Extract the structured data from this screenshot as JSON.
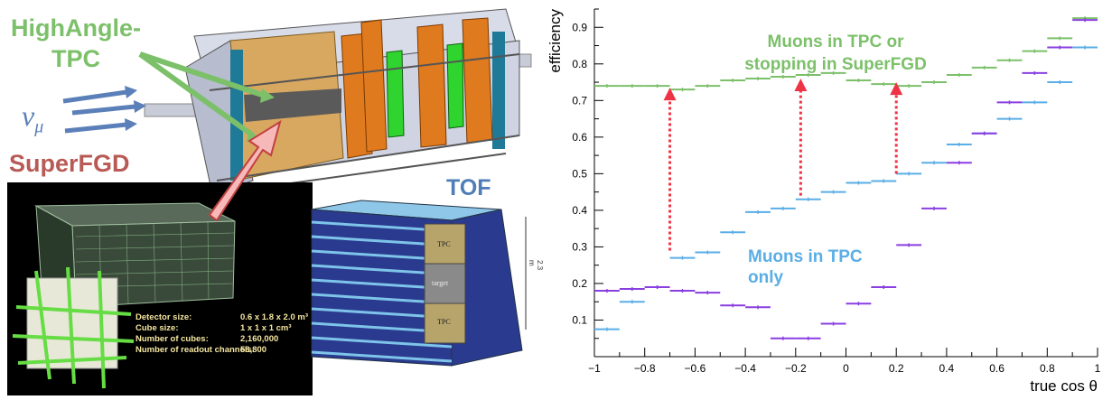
{
  "left_panel": {
    "label_tpc": "HighAngle-\nTPC",
    "label_tpc_line1": "HighAngle-",
    "label_tpc_line2": "TPC",
    "label_nu": "ν",
    "label_nu_sub": "μ",
    "label_superfgd": "SuperFGD",
    "label_tof": "TOF",
    "tof_dimension": "2.3 m",
    "tof_tpc_top": "TPC",
    "tof_target": "target",
    "tof_tpc_bottom": "TPC",
    "detector_info": [
      {
        "key": "Detector size:",
        "value": "0.6 x 1.8 x 2.0 m³"
      },
      {
        "key": "Cube size:",
        "value": "1 x 1 x 1 cm³"
      },
      {
        "key": "Number of cubes:",
        "value": "2,160,000"
      },
      {
        "key": "Number of readout channels:",
        "value": "58,800"
      }
    ],
    "colors": {
      "green": "#7cc06a",
      "blue": "#5b7fb8",
      "red": "#b85a55",
      "orange": "#e07a1f",
      "tan": "#d9a860"
    }
  },
  "chart_data": {
    "type": "scatter",
    "xlabel": "true cos θ",
    "ylabel": "efficiency",
    "xlim": [
      -1,
      1
    ],
    "ylim": [
      0,
      0.95
    ],
    "xticks": [
      "−1",
      "−0.8",
      "−0.6",
      "−0.4",
      "−0.2",
      "0",
      "0.2",
      "0.4",
      "0.6",
      "0.8",
      "1"
    ],
    "yticks": [
      "0.1",
      "0.2",
      "0.3",
      "0.4",
      "0.5",
      "0.6",
      "0.7",
      "0.8",
      "0.9"
    ],
    "bin_centers": [
      -0.95,
      -0.85,
      -0.75,
      -0.65,
      -0.55,
      -0.45,
      -0.35,
      -0.25,
      -0.15,
      -0.05,
      0.05,
      0.15,
      0.25,
      0.35,
      0.45,
      0.55,
      0.65,
      0.75,
      0.85,
      0.95
    ],
    "bin_half_width": 0.05,
    "series": [
      {
        "name": "Muons in TPC or stopping in SuperFGD",
        "label_line1": "Muons in TPC or",
        "label_line2": "stopping in SuperFGD",
        "color": "#7cc06a",
        "values": [
          0.74,
          0.74,
          0.74,
          0.73,
          0.74,
          0.755,
          0.76,
          0.765,
          0.77,
          0.775,
          0.755,
          0.745,
          0.74,
          0.75,
          0.77,
          0.79,
          0.81,
          0.835,
          0.87,
          0.925
        ]
      },
      {
        "name": "Muons in TPC only",
        "label_line1": "Muons in TPC",
        "label_line2": "only",
        "color": "#5aaee6",
        "values": [
          0.075,
          0.15,
          0.19,
          0.27,
          0.285,
          0.34,
          0.395,
          0.405,
          0.43,
          0.45,
          0.475,
          0.48,
          0.5,
          0.53,
          0.58,
          0.61,
          0.65,
          0.695,
          0.75,
          0.845
        ]
      },
      {
        "name": "",
        "color": "#8a3fe0",
        "values": [
          0.18,
          0.185,
          0.19,
          0.18,
          0.175,
          0.14,
          0.135,
          0.05,
          0.05,
          0.09,
          0.145,
          0.19,
          0.305,
          0.405,
          0.53,
          0.61,
          0.695,
          0.775,
          0.845,
          0.92
        ]
      }
    ],
    "arrows": [
      {
        "x": -0.7,
        "from": 0.29,
        "to": 0.73
      },
      {
        "x": -0.18,
        "from": 0.44,
        "to": 0.755
      },
      {
        "x": 0.2,
        "from": 0.5,
        "to": 0.745
      }
    ],
    "grid": false
  }
}
